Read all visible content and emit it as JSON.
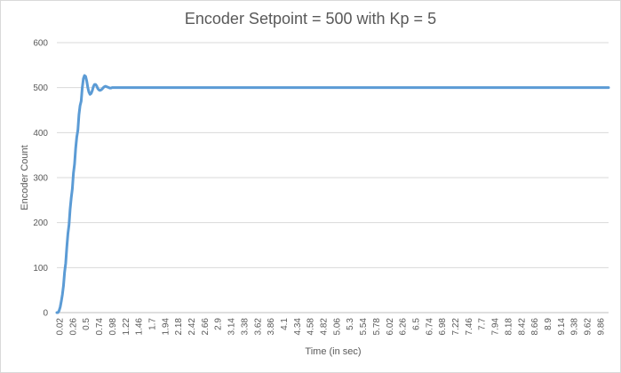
{
  "chart_data": {
    "type": "line",
    "title": "Encoder Setpoint = 500 with Kp = 5",
    "xlabel": "Time (in sec)",
    "ylabel": "Encoder Count",
    "ylim": [
      0,
      600
    ],
    "yticks": [
      0,
      100,
      200,
      300,
      400,
      500,
      600
    ],
    "xlim": [
      0.02,
      10.0
    ],
    "xtick_labels": [
      "0.02",
      "0.26",
      "0.5",
      "0.74",
      "0.98",
      "1.22",
      "1.46",
      "1.7",
      "1.94",
      "2.18",
      "2.42",
      "2.66",
      "2.9",
      "3.14",
      "3.38",
      "3.62",
      "3.86",
      "4.1",
      "4.34",
      "4.58",
      "4.82",
      "5.06",
      "5.3",
      "5.54",
      "5.78",
      "6.02",
      "6.26",
      "6.5",
      "6.74",
      "6.98",
      "7.22",
      "7.46",
      "7.7",
      "7.94",
      "8.18",
      "8.42",
      "8.66",
      "8.9",
      "9.14",
      "9.38",
      "9.62",
      "9.86"
    ],
    "grid": true,
    "legend": "none",
    "color": "#5b9bd5",
    "series": [
      {
        "x": [
          0.02,
          0.04,
          0.06,
          0.08,
          0.1,
          0.12,
          0.14,
          0.16,
          0.18,
          0.2,
          0.22,
          0.24,
          0.26,
          0.28,
          0.3,
          0.32,
          0.34,
          0.36,
          0.38,
          0.4,
          0.42,
          0.44,
          0.46,
          0.48,
          0.5,
          0.52,
          0.54,
          0.56,
          0.58,
          0.6,
          0.62,
          0.64,
          0.66,
          0.68,
          0.7,
          0.72,
          0.74,
          0.76,
          0.78,
          0.8,
          0.82,
          0.84,
          0.86,
          0.88,
          0.9,
          0.92,
          0.94,
          0.96,
          0.98,
          1.0,
          1.02,
          1.04,
          1.06,
          1.08,
          1.1,
          1.12,
          1.14,
          1.16,
          1.18,
          1.2,
          1.22,
          1.24,
          1.26,
          1.28,
          1.3,
          1.35,
          1.4,
          1.5,
          2.0,
          3.0,
          4.0,
          5.0,
          6.0,
          7.0,
          8.0,
          9.0,
          10.0
        ],
        "values": [
          0,
          0,
          4,
          12,
          25,
          40,
          60,
          90,
          110,
          145,
          175,
          195,
          230,
          255,
          275,
          310,
          330,
          365,
          390,
          405,
          440,
          460,
          470,
          500,
          520,
          527,
          525,
          515,
          500,
          490,
          485,
          487,
          493,
          502,
          507,
          507,
          504,
          498,
          495,
          494,
          495,
          497,
          500,
          502,
          503,
          502,
          501,
          500,
          499,
          499,
          500,
          500,
          500,
          500,
          500,
          500,
          500,
          500,
          500,
          500,
          500,
          500,
          500,
          500,
          500,
          500,
          500,
          500,
          500,
          500,
          500,
          500,
          500,
          500,
          500,
          500,
          500
        ]
      }
    ]
  }
}
